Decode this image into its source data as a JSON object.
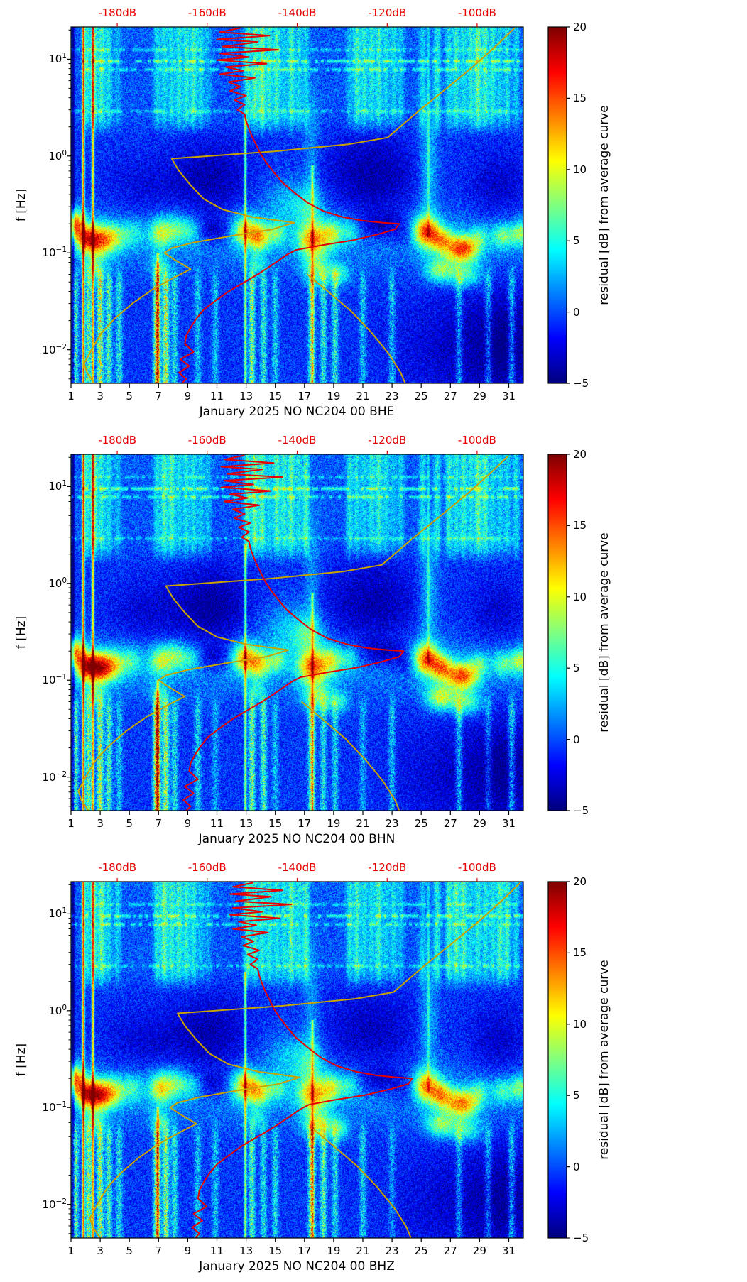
{
  "colors": {
    "background": "#ffffff",
    "axis": "#000000",
    "top_axis_red": "#e60000",
    "curve_red": "#e60000",
    "curve_yellow": "#c9a400"
  },
  "chart_data": {
    "type": "heatmap",
    "subtype": "spectrogram-with-average-curves",
    "shared": {
      "x_axis": {
        "ticks": [
          1,
          3,
          5,
          7,
          9,
          11,
          13,
          15,
          17,
          19,
          21,
          23,
          25,
          27,
          29,
          31
        ],
        "range_days": [
          1,
          32
        ]
      },
      "y_axis": {
        "label": "f [Hz]",
        "scale": "log",
        "range_hz": [
          0.0045,
          21.5
        ],
        "ticks": [
          {
            "value": 10,
            "mantissa": "10",
            "exponent": "1"
          },
          {
            "value": 1,
            "mantissa": "10",
            "exponent": "0"
          },
          {
            "value": 0.1,
            "mantissa": "10",
            "exponent": "−1"
          },
          {
            "value": 0.01,
            "mantissa": "10",
            "exponent": "−2"
          }
        ]
      },
      "top_axis": {
        "unit": "dB",
        "ticks": [
          {
            "label": "-180dB",
            "day": 4.17
          },
          {
            "label": "-160dB",
            "day": 10.33
          },
          {
            "label": "-140dB",
            "day": 16.5
          },
          {
            "label": "-120dB",
            "day": 22.67
          },
          {
            "label": "-100dB",
            "day": 28.83
          }
        ]
      },
      "colorbar": {
        "label": "residual [dB] from average curve",
        "vmin": -5,
        "vmax": 20,
        "colormap": "jet",
        "ticks": [
          {
            "label": "20",
            "value": 20
          },
          {
            "label": "15",
            "value": 15
          },
          {
            "label": "10",
            "value": 10
          },
          {
            "label": "5",
            "value": 5
          },
          {
            "label": "0",
            "value": 0
          },
          {
            "label": "−5",
            "value": -5
          }
        ]
      }
    },
    "panels": [
      {
        "xlabel": "January 2025 NO NC204 00 BHE",
        "month": "January 2025",
        "network": "NO",
        "station": "NC204",
        "location": "00",
        "channel": "BHE",
        "seed": 11,
        "curve_day_offset": {
          "red": 0,
          "yellow": 0
        }
      },
      {
        "xlabel": "January 2025 NO NC204 00 BHN",
        "month": "January 2025",
        "network": "NO",
        "station": "NC204",
        "location": "00",
        "channel": "BHN",
        "seed": 22,
        "curve_day_offset": {
          "red": 0.3,
          "yellow": -0.4
        }
      },
      {
        "xlabel": "January 2025 NO NC204 00 BHZ",
        "month": "January 2025",
        "network": "NO",
        "station": "NC204",
        "location": "00",
        "channel": "BHZ",
        "seed": 33,
        "curve_day_offset": {
          "red": 0.9,
          "yellow": 0.4
        }
      }
    ],
    "curves": {
      "red": [
        [
          12.6,
          21
        ],
        [
          11.2,
          19
        ],
        [
          14.6,
          17.5
        ],
        [
          11.0,
          16
        ],
        [
          13.8,
          15
        ],
        [
          11.4,
          13.5
        ],
        [
          15.2,
          12.5
        ],
        [
          11.2,
          11.5
        ],
        [
          13.2,
          10.5
        ],
        [
          11.0,
          9.8
        ],
        [
          14.4,
          9.0
        ],
        [
          11.6,
          8.3
        ],
        [
          12.8,
          7.6
        ],
        [
          11.2,
          7.0
        ],
        [
          13.6,
          6.4
        ],
        [
          11.8,
          5.8
        ],
        [
          12.6,
          5.2
        ],
        [
          11.9,
          4.7
        ],
        [
          13.0,
          4.2
        ],
        [
          12.2,
          3.8
        ],
        [
          12.9,
          3.4
        ],
        [
          12.4,
          3.0
        ],
        [
          12.9,
          2.7
        ],
        [
          13.0,
          2.3
        ],
        [
          13.2,
          1.9
        ],
        [
          13.4,
          1.6
        ],
        [
          13.7,
          1.3
        ],
        [
          14.0,
          1.05
        ],
        [
          14.4,
          0.85
        ],
        [
          14.9,
          0.68
        ],
        [
          15.5,
          0.53
        ],
        [
          16.3,
          0.42
        ],
        [
          17.2,
          0.33
        ],
        [
          18.3,
          0.27
        ],
        [
          19.6,
          0.235
        ],
        [
          21.0,
          0.215
        ],
        [
          22.4,
          0.205
        ],
        [
          23.5,
          0.2
        ],
        [
          23.2,
          0.175
        ],
        [
          22.0,
          0.155
        ],
        [
          20.3,
          0.135
        ],
        [
          18.2,
          0.12
        ],
        [
          16.4,
          0.107
        ],
        [
          15.8,
          0.096
        ],
        [
          15.3,
          0.085
        ],
        [
          14.6,
          0.072
        ],
        [
          13.8,
          0.06
        ],
        [
          12.8,
          0.049
        ],
        [
          11.8,
          0.04
        ],
        [
          10.9,
          0.032
        ],
        [
          10.1,
          0.026
        ],
        [
          9.6,
          0.021
        ],
        [
          9.2,
          0.017
        ],
        [
          8.9,
          0.014
        ],
        [
          8.8,
          0.0115
        ],
        [
          9.4,
          0.0095
        ],
        [
          8.5,
          0.008
        ],
        [
          9.1,
          0.0068
        ],
        [
          8.4,
          0.0058
        ],
        [
          8.9,
          0.005
        ],
        [
          8.6,
          0.0045
        ]
      ],
      "yellow": [
        [
          31.4,
          21
        ],
        [
          30.2,
          14
        ],
        [
          28.6,
          8.5
        ],
        [
          26.6,
          4.8
        ],
        [
          24.8,
          2.9
        ],
        [
          23.3,
          1.85
        ],
        [
          22.7,
          1.55
        ],
        [
          20.0,
          1.32
        ],
        [
          15.0,
          1.12
        ],
        [
          10.5,
          1.0
        ],
        [
          7.9,
          0.94
        ],
        [
          8.4,
          0.7
        ],
        [
          9.2,
          0.5
        ],
        [
          10.1,
          0.36
        ],
        [
          11.4,
          0.28
        ],
        [
          13.4,
          0.235
        ],
        [
          16.3,
          0.205
        ],
        [
          14.8,
          0.175
        ],
        [
          11.8,
          0.148
        ],
        [
          9.4,
          0.128
        ],
        [
          7.9,
          0.112
        ],
        [
          7.4,
          0.1
        ],
        [
          8.1,
          0.085
        ],
        [
          9.2,
          0.068
        ],
        [
          8.0,
          0.055
        ],
        [
          6.6,
          0.042
        ],
        [
          5.2,
          0.03
        ],
        [
          4.0,
          0.021
        ],
        [
          3.1,
          0.015
        ],
        [
          2.4,
          0.01
        ],
        [
          1.9,
          0.0072
        ],
        [
          2.1,
          0.0058
        ],
        [
          2.6,
          0.0045
        ]
      ],
      "yellow2": [
        [
          17.2,
          0.06
        ],
        [
          18.6,
          0.04
        ],
        [
          20.2,
          0.025
        ],
        [
          21.6,
          0.015
        ],
        [
          22.8,
          0.009
        ],
        [
          23.6,
          0.0058
        ],
        [
          23.9,
          0.0045
        ]
      ]
    },
    "texture": {
      "band": {
        "fc": 0.14,
        "lfw": 0.24,
        "amp": 2.4
      },
      "blobs": [
        [
          1.25,
          0.45,
          0.2,
          0.1,
          12
        ],
        [
          2.0,
          0.5,
          0.14,
          0.1,
          8
        ],
        [
          2.95,
          0.75,
          0.135,
          0.11,
          15
        ],
        [
          4.1,
          0.5,
          0.15,
          0.1,
          5
        ],
        [
          5.2,
          0.5,
          0.16,
          0.1,
          4
        ],
        [
          7.15,
          0.55,
          0.16,
          0.11,
          9
        ],
        [
          8.2,
          0.5,
          0.18,
          0.1,
          5
        ],
        [
          9.2,
          0.5,
          0.17,
          0.09,
          4
        ],
        [
          12.9,
          0.6,
          0.17,
          0.11,
          10
        ],
        [
          13.9,
          0.5,
          0.145,
          0.1,
          9
        ],
        [
          15.1,
          0.45,
          0.16,
          0.09,
          5
        ],
        [
          17.6,
          0.7,
          0.135,
          0.12,
          12
        ],
        [
          18.9,
          0.5,
          0.16,
          0.1,
          7
        ],
        [
          20.1,
          0.45,
          0.17,
          0.09,
          4
        ],
        [
          25.3,
          0.65,
          0.165,
          0.11,
          12
        ],
        [
          26.4,
          0.5,
          0.135,
          0.09,
          8
        ],
        [
          27.8,
          0.8,
          0.11,
          0.1,
          14
        ],
        [
          29.0,
          0.4,
          0.15,
          0.08,
          4
        ],
        [
          30.6,
          0.55,
          0.15,
          0.09,
          6
        ],
        [
          31.8,
          0.4,
          0.16,
          0.09,
          7
        ],
        [
          2.6,
          0.5,
          0.07,
          0.09,
          6
        ],
        [
          7.1,
          0.45,
          0.072,
          0.08,
          5
        ],
        [
          13.7,
          0.45,
          0.075,
          0.08,
          5
        ],
        [
          17.9,
          0.7,
          0.066,
          0.1,
          8
        ],
        [
          19.4,
          0.5,
          0.06,
          0.08,
          5
        ],
        [
          26.3,
          0.7,
          0.066,
          0.09,
          8
        ],
        [
          28.1,
          0.8,
          0.058,
          0.09,
          7
        ],
        [
          15.8,
          1.2,
          0.35,
          0.18,
          3
        ],
        [
          17.3,
          0.8,
          0.3,
          0.15,
          4
        ],
        [
          25.5,
          0.5,
          0.8,
          0.5,
          4
        ],
        [
          17.5,
          0.4,
          0.9,
          0.5,
          3
        ],
        [
          10.6,
          1.8,
          0.55,
          0.3,
          -3.4
        ],
        [
          21.6,
          2.2,
          0.6,
          0.32,
          -3.2
        ],
        [
          6.0,
          2.0,
          0.45,
          0.25,
          -2.0
        ],
        [
          30.3,
          1.5,
          0.45,
          0.28,
          -2.4
        ],
        [
          10.8,
          0.8,
          0.17,
          0.1,
          -3.5
        ],
        [
          22.3,
          1.1,
          0.19,
          0.1,
          -3.5
        ],
        [
          24.1,
          0.7,
          0.15,
          0.1,
          -2.5
        ],
        [
          28.0,
          3.5,
          0.01,
          0.45,
          -2.8
        ],
        [
          31.0,
          1.5,
          0.012,
          0.4,
          -2.5
        ]
      ],
      "hf_stripes": [
        [
          2.1,
          5
        ],
        [
          2.6,
          6
        ],
        [
          3.1,
          6
        ],
        [
          3.6,
          4
        ],
        [
          4.2,
          3
        ],
        [
          6.9,
          5
        ],
        [
          7.4,
          6
        ],
        [
          7.9,
          6
        ],
        [
          8.4,
          5
        ],
        [
          8.9,
          6
        ],
        [
          9.4,
          5
        ],
        [
          9.9,
          4
        ],
        [
          10.4,
          3
        ],
        [
          13.1,
          7
        ],
        [
          13.6,
          6
        ],
        [
          14.1,
          7
        ],
        [
          14.6,
          5
        ],
        [
          15.1,
          6
        ],
        [
          15.6,
          5
        ],
        [
          16.1,
          6
        ],
        [
          16.6,
          4
        ],
        [
          17.1,
          5
        ],
        [
          20.1,
          4
        ],
        [
          20.6,
          5
        ],
        [
          21.1,
          5
        ],
        [
          21.6,
          4
        ],
        [
          22.1,
          5
        ],
        [
          22.6,
          4
        ],
        [
          23.1,
          4
        ],
        [
          23.6,
          3
        ],
        [
          25.1,
          3
        ],
        [
          26.1,
          4
        ],
        [
          26.9,
          5
        ],
        [
          27.4,
          6
        ],
        [
          27.9,
          6
        ],
        [
          28.4,
          5
        ],
        [
          28.9,
          6
        ],
        [
          29.4,
          5
        ],
        [
          29.9,
          4
        ],
        [
          30.4,
          5
        ],
        [
          30.9,
          5
        ],
        [
          31.5,
          4
        ]
      ],
      "lf_columns": [
        [
          1.3,
          7
        ],
        [
          2.2,
          8
        ],
        [
          3.0,
          9
        ],
        [
          3.6,
          6
        ],
        [
          4.3,
          5
        ],
        [
          6.9,
          14
        ],
        [
          7.5,
          9
        ],
        [
          8.1,
          5
        ],
        [
          9.7,
          5
        ],
        [
          10.9,
          4
        ],
        [
          13.4,
          8
        ],
        [
          14.2,
          6
        ],
        [
          15.0,
          4
        ],
        [
          17.5,
          9
        ],
        [
          18.3,
          7
        ],
        [
          19.1,
          5
        ],
        [
          21.0,
          4
        ],
        [
          23.0,
          4
        ],
        [
          27.6,
          5
        ],
        [
          29.6,
          4
        ],
        [
          31.2,
          5
        ]
      ],
      "vlines": [
        [
          1.15,
          -6,
          0.0045,
          21.5
        ],
        [
          1.85,
          15,
          0.0045,
          21.5
        ],
        [
          2.5,
          13,
          0.0045,
          21.5
        ],
        [
          12.95,
          9,
          0.0045,
          2.5
        ],
        [
          17.55,
          7,
          0.0045,
          0.8
        ],
        [
          6.95,
          8,
          0.0045,
          0.1
        ],
        [
          25.5,
          3.5,
          0.15,
          21.5
        ]
      ],
      "dash_rows": [
        [
          9.5,
          5
        ],
        [
          7.8,
          4
        ],
        [
          2.9,
          3
        ],
        [
          12.5,
          3
        ]
      ]
    }
  }
}
